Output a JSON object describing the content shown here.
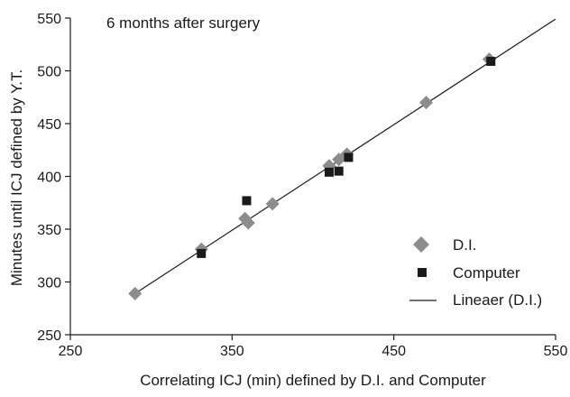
{
  "chart_data": {
    "type": "scatter",
    "annotation": "6 months after surgery",
    "xlabel": "Correlating ICJ (min) defined by D.I. and Computer",
    "ylabel": "Minutes until ICJ defined by Y.T.",
    "xlim": [
      250,
      550
    ],
    "ylim": [
      250,
      550
    ],
    "xticks": [
      250,
      350,
      450,
      550
    ],
    "yticks": [
      250,
      300,
      350,
      400,
      450,
      500,
      550
    ],
    "grid": false,
    "legend_position": "bottom-right",
    "series": [
      {
        "name": "D.I.",
        "marker": "diamond",
        "color": "#8c8c8c",
        "points": [
          [
            290,
            289
          ],
          [
            331,
            331
          ],
          [
            358,
            360
          ],
          [
            360,
            356
          ],
          [
            375,
            374
          ],
          [
            410,
            410
          ],
          [
            416,
            416
          ],
          [
            421,
            421
          ],
          [
            470,
            470
          ],
          [
            509,
            511
          ]
        ]
      },
      {
        "name": "Computer",
        "marker": "square",
        "color": "#1a1a1a",
        "points": [
          [
            331,
            327
          ],
          [
            359,
            377
          ],
          [
            410,
            404
          ],
          [
            416,
            405
          ],
          [
            422,
            418
          ],
          [
            510,
            509
          ]
        ]
      },
      {
        "name": "Lineaer (D.I.)",
        "marker": "line",
        "color": "#1a1a1a",
        "points": [
          [
            290,
            289
          ],
          [
            550,
            549
          ]
        ]
      }
    ]
  }
}
